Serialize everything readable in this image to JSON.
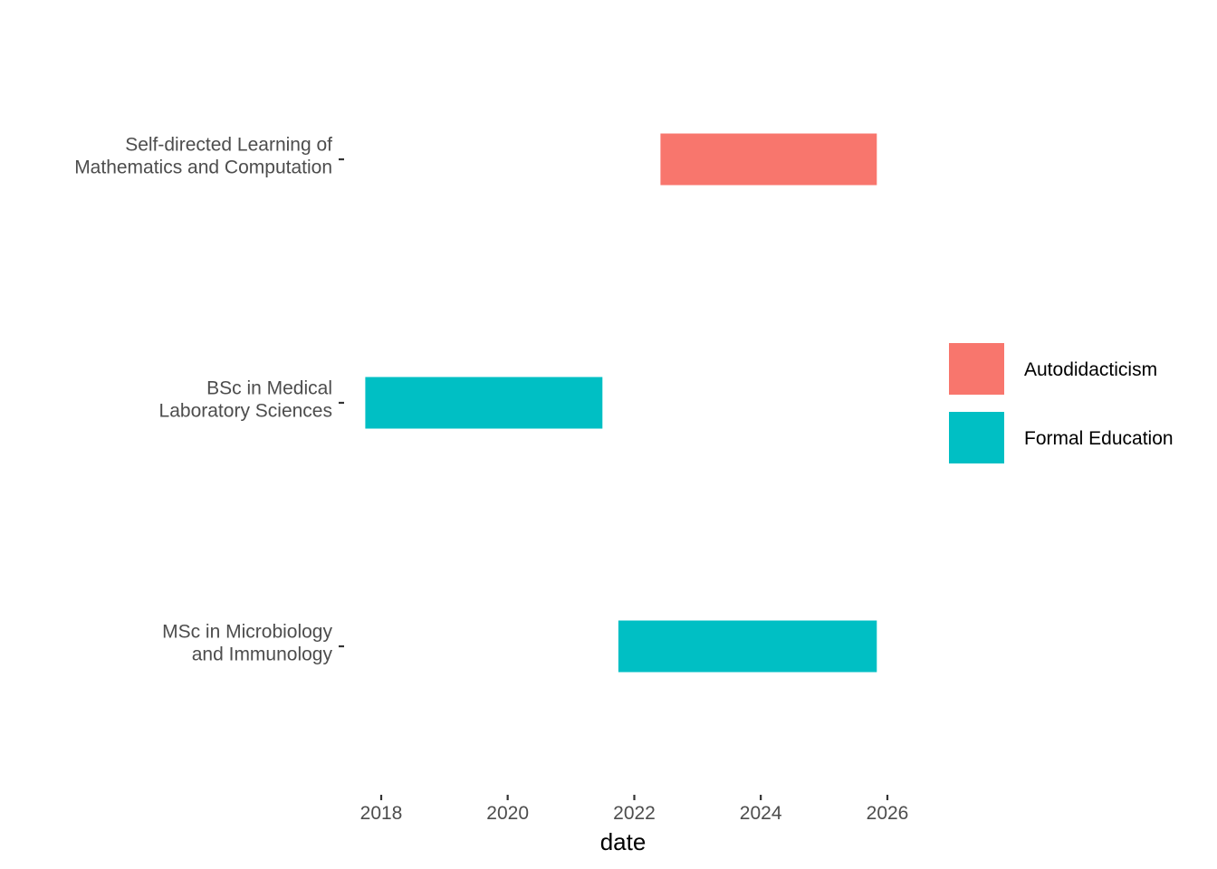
{
  "chart_data": {
    "type": "bar",
    "orientation": "horizontal-timeline",
    "title": "",
    "xlabel": "date",
    "ylabel": "",
    "x_axis_type": "date",
    "xlim": [
      "2017-06-01",
      "2027-01-01"
    ],
    "x_ticks": [
      "2018",
      "2020",
      "2022",
      "2024",
      "2026"
    ],
    "grid": false,
    "legend_position": "right",
    "groups": [
      {
        "name": "Autodidacticism",
        "color": "#F8766D"
      },
      {
        "name": "Formal Education",
        "color": "#00BFC4"
      }
    ],
    "tasks": [
      {
        "label_lines": [
          "Self-directed Learning of",
          "Mathematics and Computation"
        ],
        "group": "Autodidacticism",
        "start": "2022-06-01",
        "end": "2025-11-01"
      },
      {
        "label_lines": [
          "BSc in Medical",
          "Laboratory Sciences"
        ],
        "group": "Formal Education",
        "start": "2017-10-01",
        "end": "2021-07-01"
      },
      {
        "label_lines": [
          "MSc in Microbiology",
          "and Immunology"
        ],
        "group": "Formal Education",
        "start": "2021-10-01",
        "end": "2025-11-01"
      }
    ]
  }
}
